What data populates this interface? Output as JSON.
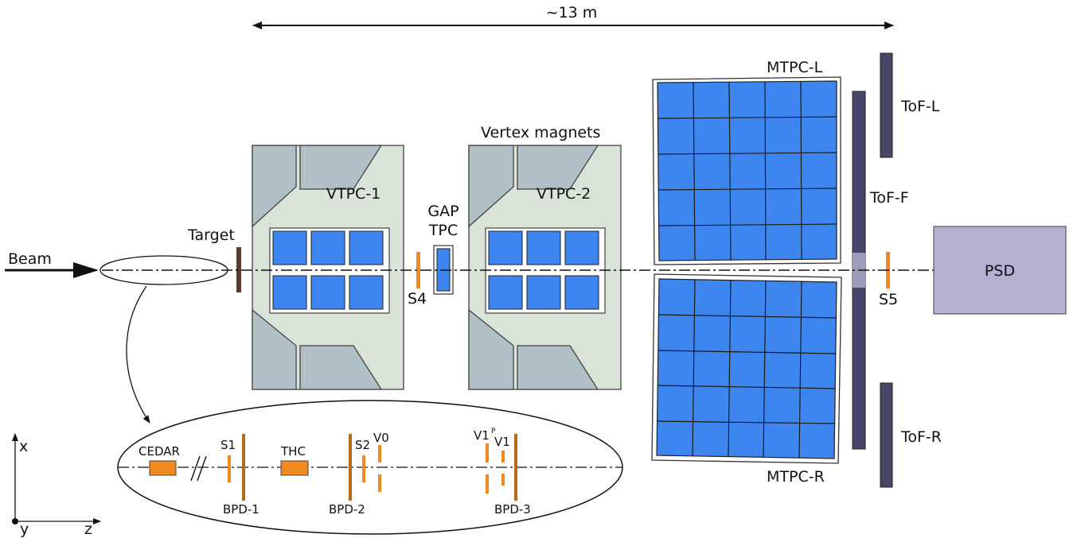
{
  "labels": {
    "dimension": "~13 m",
    "beam": "Beam",
    "target": "Target",
    "vtpc1": "VTPC-1",
    "vtpc2": "VTPC-2",
    "gap_line1": "GAP",
    "gap_line2": "TPC",
    "s4": "S4",
    "vertex_magnets": "Vertex magnets",
    "mtpc_l": "MTPC-L",
    "mtpc_r": "MTPC-R",
    "tof_l": "ToF-L",
    "tof_f": "ToF-F",
    "tof_r": "ToF-R",
    "s5": "S5",
    "psd": "PSD",
    "axis_x": "x",
    "axis_y": "y",
    "axis_z": "z"
  },
  "inset": {
    "cedar": "CEDAR",
    "s1": "S1",
    "thc": "THC",
    "s2": "S2",
    "v0": "V0",
    "v1p": "V1",
    "v1p_sup": "P",
    "v1": "V1",
    "bpd1": "BPD-1",
    "bpd2": "BPD-2",
    "bpd3": "BPD-3"
  },
  "colors": {
    "tpc_cell": "#3d86f0",
    "magnet_body": "#d9e3d7",
    "magnet_yoke": "#b0c0c6",
    "tof": "#464769",
    "psd": "#b3b1cf",
    "counter": "#f08a1e",
    "bpd": "#b86a1c",
    "target": "#5a3c33"
  }
}
